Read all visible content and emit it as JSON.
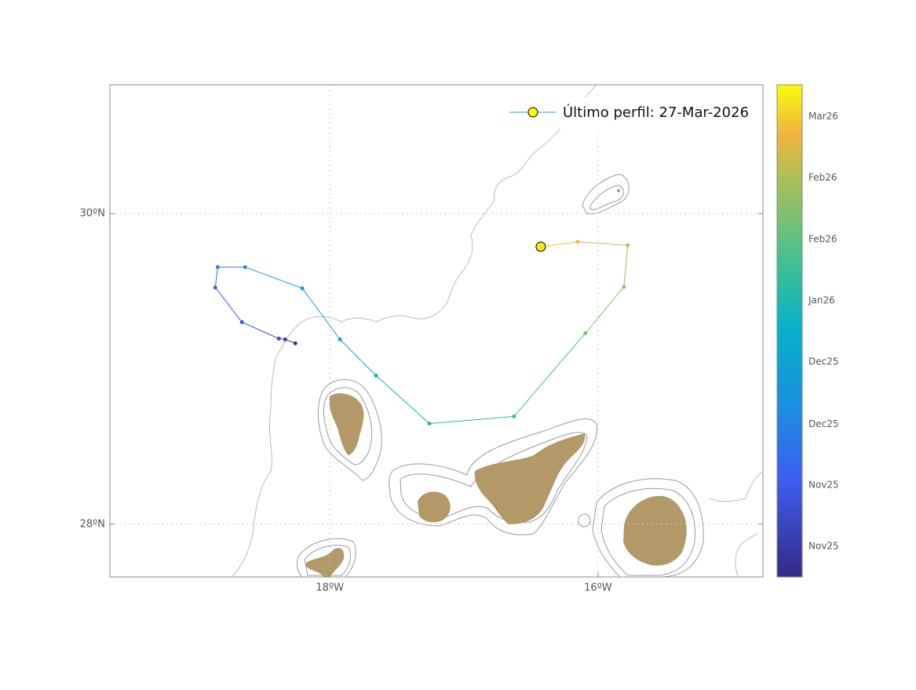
{
  "chart_data": {
    "type": "trajectory",
    "legend_label": "Último perfil: 27-Mar-2026",
    "xlim": [
      -19.64,
      -14.77
    ],
    "ylim": [
      27.66,
      30.83
    ],
    "xticks": [
      {
        "value": -18,
        "label": "18ºW"
      },
      {
        "value": -16,
        "label": "16ºW"
      }
    ],
    "yticks": [
      {
        "value": 28,
        "label": "28ºN"
      },
      {
        "value": 30,
        "label": "30ºN"
      }
    ],
    "grid": true,
    "colormap": "parula",
    "clim": [
      0,
      125
    ],
    "cticks": [
      {
        "value": 7.8,
        "label": "Nov25"
      },
      {
        "value": 23.3,
        "label": "Nov25"
      },
      {
        "value": 38.8,
        "label": "Dec25"
      },
      {
        "value": 54.6,
        "label": "Dec25"
      },
      {
        "value": 70.2,
        "label": "Jan26"
      },
      {
        "value": 85.7,
        "label": "Feb26"
      },
      {
        "value": 101.4,
        "label": "Feb26"
      },
      {
        "value": 116.9,
        "label": "Mar26"
      }
    ],
    "series": [
      {
        "lon": [
          -18.257,
          -18.333,
          -18.38,
          -18.655,
          -18.854,
          -18.836,
          -18.632,
          -18.205,
          -17.924,
          -17.655,
          -17.257,
          -16.626,
          -16.094,
          -15.807,
          -15.778,
          -16.152,
          -16.427
        ],
        "lat": [
          29.165,
          29.19,
          29.195,
          29.301,
          29.524,
          29.656,
          29.656,
          29.519,
          29.19,
          28.957,
          28.648,
          28.694,
          29.23,
          29.529,
          29.797,
          29.818,
          29.787
        ],
        "t": [
          2,
          9,
          16,
          23,
          30,
          37,
          44,
          51,
          58,
          65,
          72,
          79,
          93,
          100,
          107,
          114,
          121
        ]
      }
    ]
  }
}
